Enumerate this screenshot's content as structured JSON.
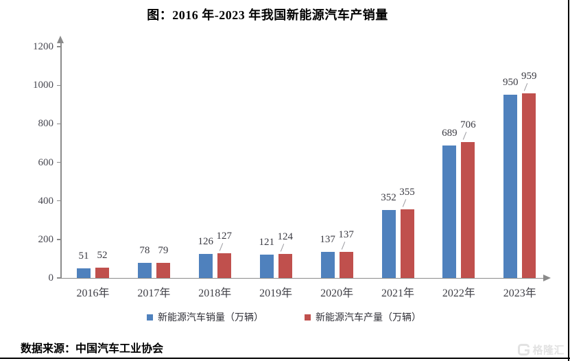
{
  "title": "图：2016 年-2023 年我国新能源汽车产销量",
  "source": "数据来源：中国汽车工业协会",
  "watermark": "格隆汇",
  "colors": {
    "sales_blue": "#4F81BD",
    "production_red": "#C0504D",
    "axis_gray": "#8a8a8a"
  },
  "legend": [
    {
      "label": "新能源汽车销量（万辆）",
      "color": "#4F81BD"
    },
    {
      "label": "新能源汽车产量（万辆）",
      "color": "#C0504D"
    }
  ],
  "chart_data": {
    "type": "bar",
    "title": "图：2016 年-2023 年我国新能源汽车产销量",
    "categories": [
      "2016年",
      "2017年",
      "2018年",
      "2019年",
      "2020年",
      "2021年",
      "2022年",
      "2023年"
    ],
    "series": [
      {
        "name": "新能源汽车销量（万辆）",
        "color": "#4F81BD",
        "values": [
          51,
          78,
          126,
          121,
          137,
          352,
          689,
          950
        ]
      },
      {
        "name": "新能源汽车产量（万辆）",
        "color": "#C0504D",
        "values": [
          52,
          79,
          127,
          124,
          137,
          355,
          706,
          959
        ]
      }
    ],
    "xlabel": "",
    "ylabel": "",
    "ylim": [
      0,
      1200
    ],
    "yticks": [
      0,
      200,
      400,
      600,
      800,
      1000,
      1200
    ],
    "grid": false,
    "legend_position": "bottom",
    "data_labels": true,
    "raised_label_groups": [
      2,
      3,
      4,
      5,
      6,
      7
    ]
  }
}
